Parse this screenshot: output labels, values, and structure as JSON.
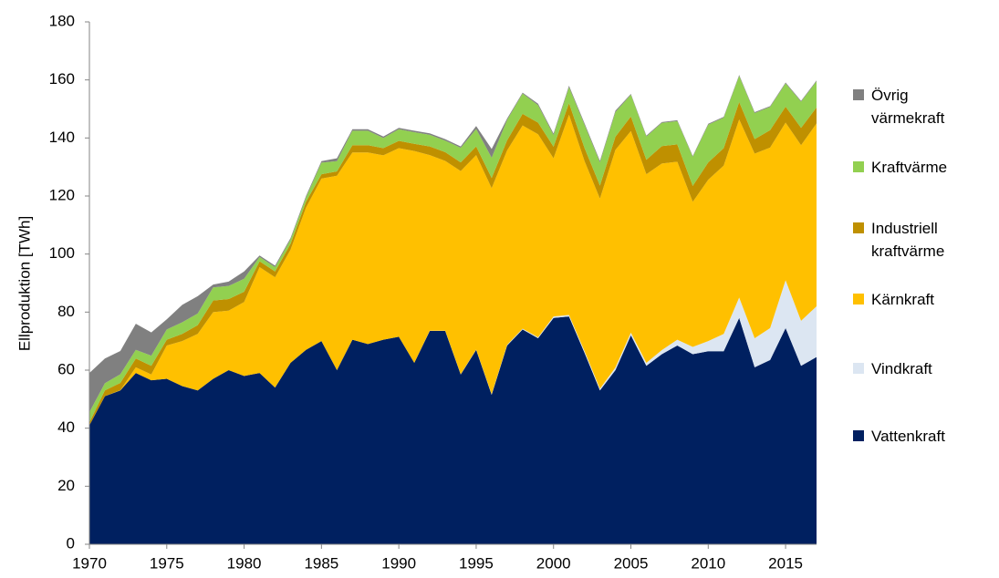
{
  "chart_data": {
    "type": "stacked-area",
    "y_label": "Ellproduktion [TWh]",
    "x": [
      1970,
      1971,
      1972,
      1973,
      1974,
      1975,
      1976,
      1977,
      1978,
      1979,
      1980,
      1981,
      1982,
      1983,
      1984,
      1985,
      1986,
      1987,
      1988,
      1989,
      1990,
      1991,
      1992,
      1993,
      1994,
      1995,
      1996,
      1997,
      1998,
      1999,
      2000,
      2001,
      2002,
      2003,
      2004,
      2005,
      2006,
      2007,
      2008,
      2009,
      2010,
      2011,
      2012,
      2013,
      2014,
      2015,
      2016,
      2017
    ],
    "xlim": [
      1970,
      2017
    ],
    "xticks": [
      1970,
      1975,
      1980,
      1985,
      1990,
      1995,
      2000,
      2005,
      2010,
      2015
    ],
    "ylim": [
      0,
      180
    ],
    "yticks": [
      0,
      20,
      40,
      60,
      80,
      100,
      120,
      140,
      160,
      180
    ],
    "grid": false,
    "series": [
      {
        "name": "Vattenkraft",
        "color": "#002060",
        "values": [
          41,
          51,
          53,
          59,
          56.5,
          57,
          54.5,
          53,
          57,
          60,
          58,
          59,
          54,
          62.5,
          67,
          70,
          60,
          70.5,
          69,
          70.5,
          71.5,
          62.5,
          73.5,
          73.5,
          58.5,
          67,
          51.5,
          68.5,
          74,
          71,
          78,
          78.5,
          66,
          53,
          60,
          72,
          61.5,
          65.5,
          68.5,
          65.5,
          66.5,
          66.5,
          78,
          61,
          63.5,
          74.5,
          61.5,
          64.5
        ]
      },
      {
        "name": "Vindkraft",
        "color": "#dce6f2",
        "values": [
          0,
          0,
          0,
          0,
          0,
          0,
          0,
          0,
          0,
          0,
          0,
          0,
          0,
          0,
          0,
          0,
          0,
          0,
          0,
          0,
          0,
          0,
          0.1,
          0.1,
          0.1,
          0.1,
          0.2,
          0.2,
          0.3,
          0.3,
          0.5,
          0.5,
          0.6,
          0.6,
          0.9,
          0.9,
          1,
          1.4,
          2,
          2.5,
          3.5,
          6,
          7,
          10,
          11,
          16.5,
          15.5,
          17.5
        ]
      },
      {
        "name": "Kärnkraft",
        "color": "#ffc000",
        "values": [
          0,
          0,
          0.1,
          2,
          2,
          11.5,
          15.5,
          19.5,
          23,
          20.5,
          25.5,
          36.5,
          38,
          39,
          49,
          56,
          67,
          64.5,
          66,
          63.5,
          65,
          73,
          60.5,
          58.5,
          70,
          67,
          71,
          67,
          70,
          70,
          54.5,
          69,
          65.5,
          65.5,
          75,
          69.5,
          65,
          64.3,
          61.3,
          50,
          55.6,
          58,
          61.4,
          63.6,
          62.2,
          54.3,
          60.5,
          63
        ]
      },
      {
        "name": "Industriell kraftvärme",
        "color": "#bf9000",
        "values": [
          1,
          2,
          2.5,
          3,
          3,
          2,
          2.5,
          3,
          4,
          4,
          3.5,
          2,
          2,
          2,
          2,
          1.5,
          1.5,
          2.5,
          2.5,
          2.5,
          2.5,
          2.5,
          3,
          3,
          3,
          3,
          3.5,
          3.5,
          4,
          4,
          4,
          4,
          4.5,
          4.5,
          4.5,
          5,
          5,
          6,
          6,
          5.5,
          6,
          6,
          6,
          5,
          6,
          5.5,
          6,
          5.5
        ]
      },
      {
        "name": "Kraftvärme",
        "color": "#92d050",
        "values": [
          3.5,
          2.5,
          3,
          3,
          3.5,
          3.5,
          4,
          4,
          4.5,
          4.5,
          4.5,
          1.5,
          1.5,
          1.5,
          1.5,
          4,
          3.5,
          5,
          5,
          3.5,
          4,
          4,
          4,
          4,
          5,
          6,
          7,
          7,
          7,
          6,
          4,
          5.5,
          8,
          8,
          8.5,
          7.5,
          8,
          8,
          8,
          10,
          13,
          10.5,
          9,
          9,
          8,
          8,
          9,
          9
        ]
      },
      {
        "name": "Övrig värmekraft",
        "color": "#808080",
        "values": [
          13.5,
          8.5,
          8,
          9,
          8,
          3.5,
          6,
          6,
          1,
          1.5,
          2.5,
          0.5,
          0.5,
          0.5,
          0.5,
          0.5,
          1,
          0.5,
          0.5,
          0.5,
          0.5,
          0.5,
          0.5,
          0.5,
          0.5,
          1,
          3,
          0.5,
          0.3,
          0.5,
          0.5,
          0.5,
          0.5,
          0.5,
          0.5,
          0.3,
          0.3,
          0.3,
          0.3,
          0.3,
          0.3,
          0.3,
          0.3,
          0.3,
          0.3,
          0.3,
          0.3,
          0.3
        ]
      }
    ]
  }
}
